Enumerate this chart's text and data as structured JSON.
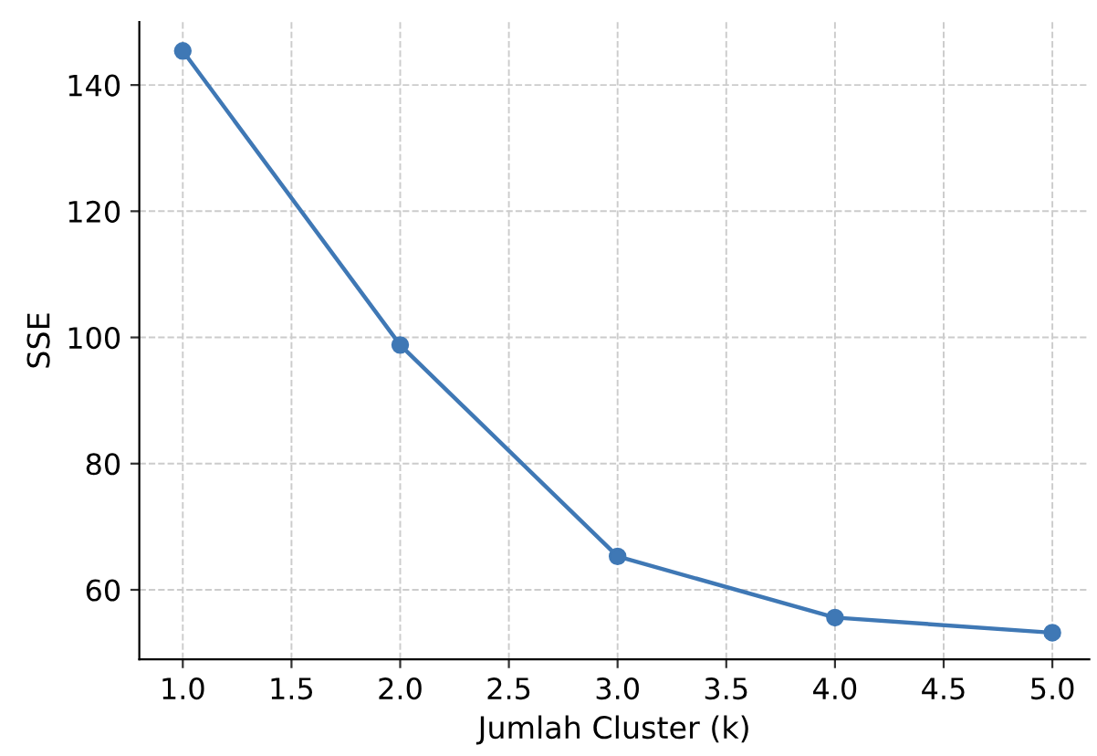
{
  "chart_data": {
    "type": "line",
    "xlabel": "Jumlah Cluster (k)",
    "ylabel": "SSE",
    "x": [
      1.0,
      2.0,
      3.0,
      4.0,
      5.0
    ],
    "series": [
      {
        "color": "#3f78b5",
        "values": [
          145.4,
          98.8,
          65.3,
          55.6,
          53.2
        ]
      }
    ],
    "xlim": [
      0.8,
      5.17
    ],
    "ylim": [
      49,
      150
    ],
    "xticks": [
      {
        "value": 1.0,
        "label": "1.0"
      },
      {
        "value": 1.5,
        "label": "1.5"
      },
      {
        "value": 2.0,
        "label": "2.0"
      },
      {
        "value": 2.5,
        "label": "2.5"
      },
      {
        "value": 3.0,
        "label": "3.0"
      },
      {
        "value": 3.5,
        "label": "3.5"
      },
      {
        "value": 4.0,
        "label": "4.0"
      },
      {
        "value": 4.5,
        "label": "4.5"
      },
      {
        "value": 5.0,
        "label": "5.0"
      }
    ],
    "yticks": [
      60,
      80,
      100,
      120,
      140
    ],
    "grid": true,
    "marker": "circle",
    "line_style": "solid"
  }
}
